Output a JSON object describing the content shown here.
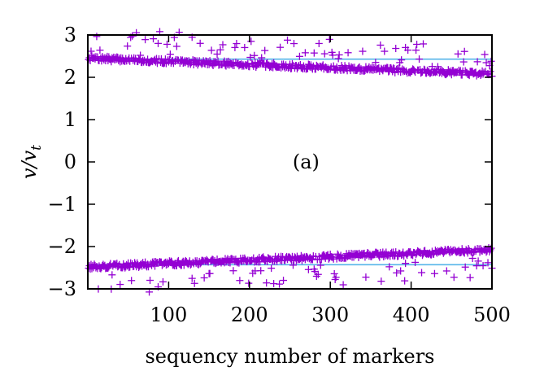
{
  "chart_data": {
    "type": "scatter",
    "title": "",
    "xlabel": "sequency number of markers",
    "ylabel_main": "v/v",
    "ylabel_sub": "t",
    "annotation": "(a)",
    "xlim": [
      0,
      500
    ],
    "ylim": [
      -3,
      3
    ],
    "xticks": [
      100,
      200,
      300,
      400,
      500
    ],
    "yticks": [
      -3,
      -2,
      -1,
      0,
      1,
      2,
      3
    ],
    "ytick_labels": [
      "−3",
      "−2",
      "−1",
      "0",
      "1",
      "2",
      "3"
    ],
    "grid": false,
    "colors": {
      "points": "#9400d3",
      "reference_line": "#56b4e9"
    },
    "reference_lines": [
      {
        "y": 2.43
      },
      {
        "y": -2.43
      }
    ],
    "series": [
      {
        "marker": "plus",
        "upper_trend": {
          "start": 2.45,
          "end": 2.08,
          "noise": 0.06,
          "outlier_prob": 0.12,
          "outlier_min": 0.15,
          "outlier_max": 0.65,
          "seed": 7
        },
        "lower_trend": {
          "start": -2.48,
          "end": -2.08,
          "noise": 0.06,
          "outlier_prob": 0.12,
          "outlier_min": 0.15,
          "outlier_max": 0.65,
          "seed": 13
        },
        "n_points": 500
      }
    ]
  }
}
